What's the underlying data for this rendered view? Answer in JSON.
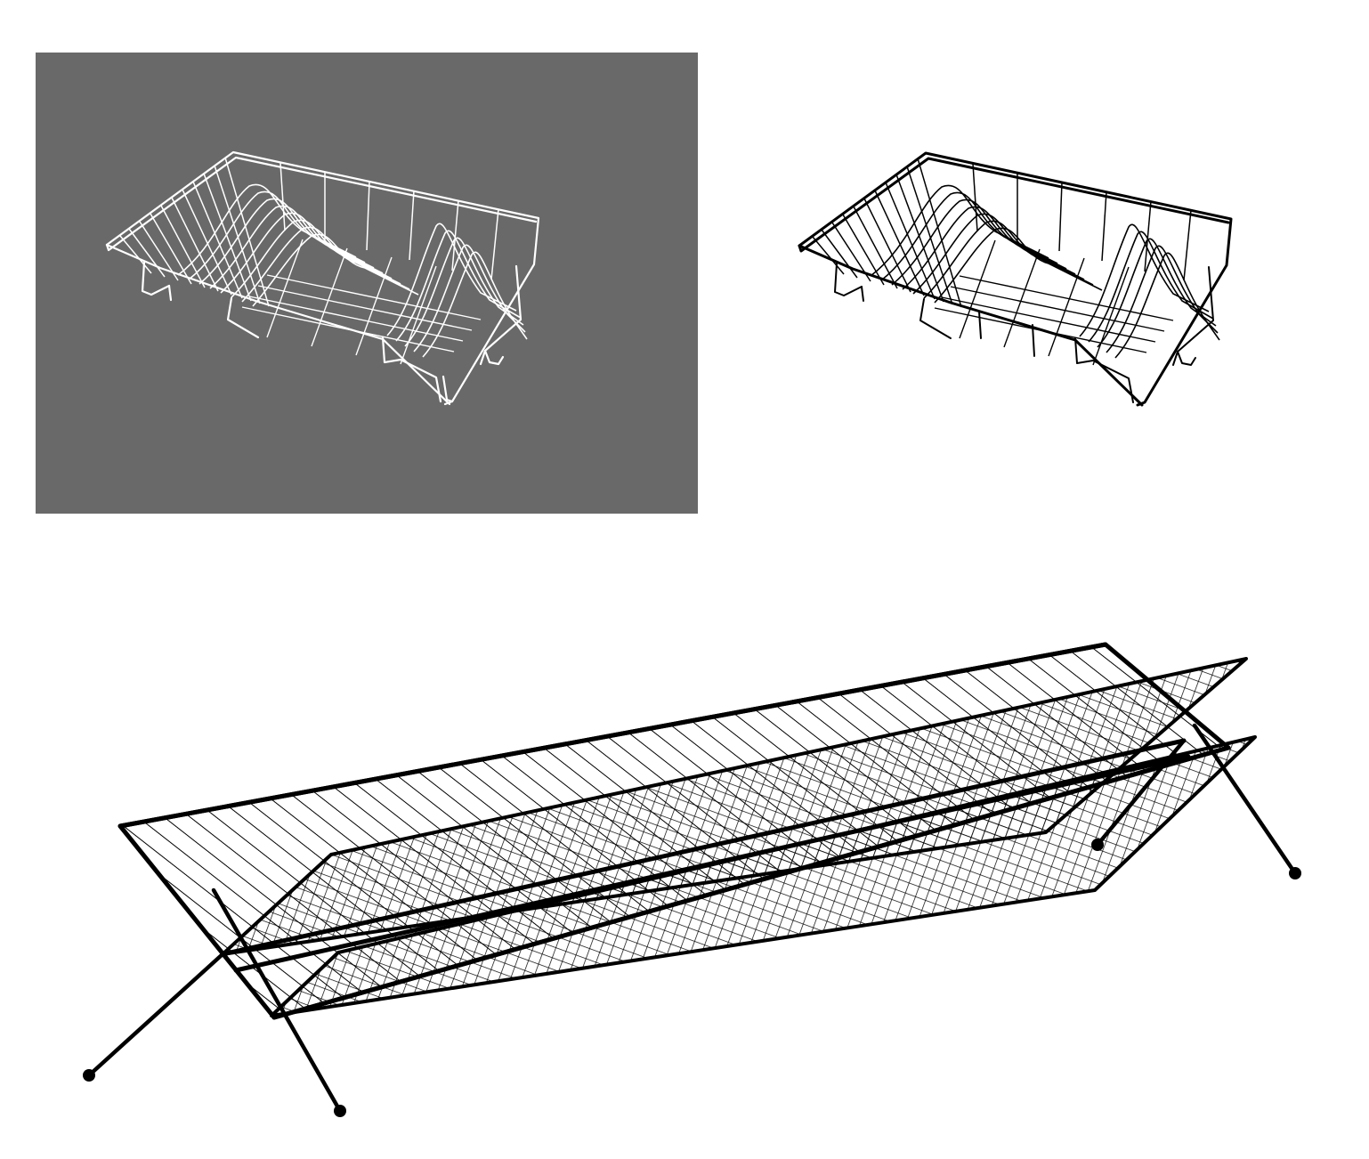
{
  "scene": {
    "background": "#ffffff",
    "panels": [
      {
        "id": "rendered-view",
        "subject": "dish-drying-rack",
        "style": "white-wire-on-gray",
        "background_color": "#696969",
        "wire_color": "#ffffff"
      },
      {
        "id": "line-art-view",
        "subject": "dish-drying-rack",
        "style": "black-outline",
        "wire_color": "#000000"
      },
      {
        "id": "flat-rack-diagram",
        "subject": "folding-wire-plate-rack",
        "style": "black-line-drawing",
        "wire_color": "#000000",
        "leg_foot_icon": "ball-foot"
      }
    ]
  }
}
